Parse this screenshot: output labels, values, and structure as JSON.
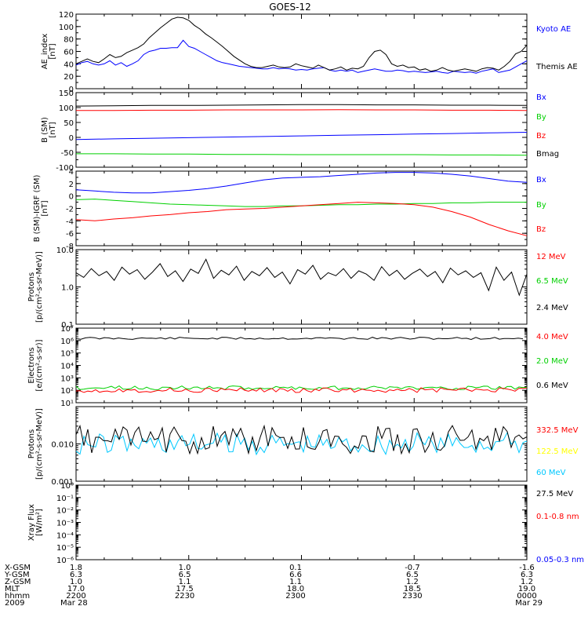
{
  "title": "GOES-12",
  "colors": {
    "black": "#000000",
    "blue": "#0000ff",
    "green": "#00d000",
    "red": "#ff0000",
    "yellow": "#ffff00",
    "cyan": "#00c8ff",
    "grey": "#888888"
  },
  "chart_data": [
    {
      "type": "line",
      "ylabel": [
        "AE_index",
        "[nT]"
      ],
      "ylim": [
        0,
        120
      ],
      "ticks": [
        "0",
        "20",
        "40",
        "60",
        "80",
        "100",
        "120"
      ],
      "tick_values": [
        0,
        20,
        40,
        60,
        80,
        100,
        120
      ],
      "series": [
        {
          "name": "Kyoto AE",
          "color": "blue",
          "values": [
            38,
            42,
            44,
            40,
            38,
            40,
            45,
            38,
            42,
            36,
            40,
            45,
            55,
            60,
            62,
            65,
            65,
            66,
            66,
            78,
            68,
            65,
            60,
            55,
            50,
            45,
            42,
            40,
            38,
            36,
            35,
            34,
            33,
            32,
            32,
            34,
            32,
            33,
            32,
            30,
            31,
            30,
            32,
            33,
            34,
            30,
            28,
            30,
            28,
            30,
            26,
            28,
            30,
            32,
            30,
            28,
            28,
            30,
            29,
            27,
            28,
            27,
            26,
            27,
            28,
            26,
            25,
            28,
            27,
            26,
            27,
            25,
            28,
            30,
            32,
            26,
            28,
            30,
            35,
            40,
            45
          ]
        },
        {
          "name": "Themis AE",
          "color": "black",
          "values": [
            40,
            44,
            48,
            44,
            42,
            48,
            55,
            50,
            52,
            58,
            62,
            66,
            72,
            82,
            90,
            98,
            105,
            112,
            115,
            114,
            110,
            102,
            96,
            88,
            82,
            75,
            68,
            60,
            52,
            46,
            40,
            36,
            34,
            34,
            36,
            38,
            35,
            34,
            35,
            40,
            37,
            35,
            33,
            38,
            34,
            30,
            32,
            35,
            30,
            33,
            32,
            36,
            50,
            60,
            62,
            55,
            40,
            36,
            38,
            34,
            35,
            30,
            32,
            28,
            30,
            34,
            30,
            28,
            30,
            32,
            30,
            28,
            32,
            34,
            33,
            30,
            36,
            44,
            56,
            60,
            70
          ]
        }
      ],
      "legend": [
        "Kyoto AE",
        "Themis AE"
      ]
    },
    {
      "type": "line",
      "ylabel": [
        "B (SM)",
        "[nT]"
      ],
      "ylim": [
        -100,
        150
      ],
      "ticks": [
        "-100",
        "-50",
        "0",
        "50",
        "100",
        "150"
      ],
      "tick_values": [
        -100,
        -50,
        0,
        50,
        100,
        150
      ],
      "series": [
        {
          "name": "Bx",
          "color": "blue",
          "values": [
            -7,
            -5,
            -3,
            -1,
            1,
            3,
            5,
            7,
            9,
            11,
            13,
            15,
            17
          ]
        },
        {
          "name": "By",
          "color": "green",
          "values": [
            -55,
            -55,
            -56,
            -56,
            -57,
            -57,
            -58,
            -58,
            -58,
            -58,
            -59,
            -59,
            -60
          ]
        },
        {
          "name": "Bz",
          "color": "red",
          "values": [
            90,
            90,
            91,
            91,
            92,
            92,
            92,
            93,
            92,
            92,
            91,
            91,
            90
          ]
        },
        {
          "name": "Bmag",
          "color": "black",
          "values": [
            105,
            106,
            107,
            107,
            108,
            109,
            110,
            110,
            109,
            109,
            108,
            108,
            107
          ]
        }
      ],
      "legend": [
        "Bx",
        "By",
        "Bz",
        "Bmag"
      ]
    },
    {
      "type": "line",
      "ylabel": [
        "B (SM)-IGRF (SM)",
        "[nT]"
      ],
      "ylim": [
        -8,
        4
      ],
      "ticks": [
        "-8",
        "-6",
        "-4",
        "-2",
        "0",
        "2",
        "4"
      ],
      "tick_values": [
        -8,
        -6,
        -4,
        -2,
        0,
        2,
        4
      ],
      "series": [
        {
          "name": "Bx",
          "color": "blue",
          "values": [
            1.0,
            0.8,
            0.6,
            0.5,
            0.5,
            0.7,
            0.9,
            1.2,
            1.6,
            2.1,
            2.6,
            2.9,
            3.0,
            3.1,
            3.3,
            3.5,
            3.7,
            3.8,
            3.8,
            3.7,
            3.5,
            3.2,
            2.8,
            2.4,
            2.2
          ]
        },
        {
          "name": "By",
          "color": "green",
          "values": [
            -0.6,
            -0.5,
            -0.7,
            -0.9,
            -1.1,
            -1.3,
            -1.4,
            -1.5,
            -1.6,
            -1.7,
            -1.7,
            -1.6,
            -1.6,
            -1.5,
            -1.4,
            -1.4,
            -1.3,
            -1.3,
            -1.2,
            -1.2,
            -1.1,
            -1.1,
            -1.0,
            -1.0,
            -1.0
          ]
        },
        {
          "name": "Bz",
          "color": "red",
          "values": [
            -3.8,
            -4.0,
            -3.7,
            -3.5,
            -3.2,
            -3.0,
            -2.7,
            -2.5,
            -2.2,
            -2.1,
            -2.0,
            -1.8,
            -1.6,
            -1.4,
            -1.2,
            -1.0,
            -1.1,
            -1.2,
            -1.4,
            -1.8,
            -2.5,
            -3.4,
            -4.6,
            -5.6,
            -6.4
          ]
        }
      ],
      "legend": [
        "Bx",
        "By",
        "Bz"
      ]
    },
    {
      "type": "line",
      "ylabel": [
        "Protons",
        "[p/(cm²-s-sr-MeV)]"
      ],
      "log": true,
      "ylim": [
        0.1,
        10
      ],
      "ticks": [
        "0.1",
        "1.0",
        "10.0"
      ],
      "tick_values": [
        0.1,
        1,
        10
      ],
      "series": [
        {
          "name": "12 MeV",
          "color": "red",
          "values": []
        },
        {
          "name": "6.5 MeV",
          "color": "green",
          "values": []
        },
        {
          "name": "2.4 MeV",
          "color": "black",
          "values": [
            2.4,
            1.8,
            3.1,
            2.0,
            2.6,
            1.5,
            3.4,
            2.2,
            2.9,
            1.6,
            2.5,
            4.2,
            1.9,
            2.7,
            1.4,
            3.0,
            2.3,
            5.5,
            1.7,
            2.8,
            2.1,
            3.6,
            1.5,
            2.6,
            2.0,
            3.3,
            1.8,
            2.5,
            1.2,
            2.9,
            2.2,
            3.8,
            1.6,
            2.4,
            2.0,
            3.1,
            1.7,
            2.7,
            2.2,
            1.5,
            3.5,
            2.0,
            2.8,
            1.6,
            2.3,
            3.0,
            1.9,
            2.6,
            1.3,
            3.2,
            2.1,
            2.7,
            1.8,
            2.4,
            0.8,
            3.4,
            1.5,
            2.5,
            0.6,
            2.2
          ]
        }
      ],
      "legend": [
        "12 MeV",
        "6.5 MeV",
        "2.4 MeV"
      ]
    },
    {
      "type": "line",
      "ylabel": [
        "Electrons",
        "[e/(cm²-s-sr)]"
      ],
      "log": true,
      "ylim": [
        10,
        10000000
      ],
      "ticks": [
        "10¹",
        "10²",
        "10³",
        "10⁴",
        "10⁵",
        "10⁶",
        "10⁷"
      ],
      "tick_values": [
        10,
        100,
        1000,
        10000,
        100000,
        1000000,
        10000000
      ],
      "series": [
        {
          "name": "4.0 MeV",
          "color": "red",
          "values": []
        },
        {
          "name": "2.0 MeV",
          "color": "green",
          "values": []
        },
        {
          "name": "0.6 MeV",
          "color": "black",
          "values": []
        }
      ],
      "legend": [
        "4.0 MeV",
        "2.0 MeV",
        "0.6 MeV"
      ]
    },
    {
      "type": "line",
      "ylabel": [
        "Protons",
        "[p/(cm²-s-sr-MeV)]"
      ],
      "log": true,
      "ylim": [
        0.001,
        0.1
      ],
      "ticks": [
        "0.001",
        "0.010"
      ],
      "tick_values": [
        0.001,
        0.01
      ],
      "series": [
        {
          "name": "332.5 MeV",
          "color": "red",
          "values": []
        },
        {
          "name": "122.5 MeV",
          "color": "yellow",
          "values": []
        },
        {
          "name": "60 MeV",
          "color": "cyan",
          "values": []
        },
        {
          "name": "27.5 MeV",
          "color": "black",
          "values": []
        }
      ],
      "legend": [
        "332.5 MeV",
        "122.5 MeV",
        "60 MeV",
        "27.5 MeV"
      ]
    },
    {
      "type": "line",
      "ylabel": [
        "Xray Flux",
        "[W/m²]"
      ],
      "log": true,
      "ylim": [
        1e-06,
        1
      ],
      "ticks": [
        "10⁻⁶",
        "10⁻⁵",
        "10⁻⁴",
        "10⁻³",
        "10⁻²",
        "10⁻¹",
        "10⁰"
      ],
      "tick_values": [
        1e-06,
        1e-05,
        0.0001,
        0.001,
        0.01,
        0.1,
        1
      ],
      "series": [
        {
          "name": "0.1-0.8 nm",
          "color": "red",
          "values": []
        },
        {
          "name": "0.05-0.3 nm",
          "color": "blue",
          "values": []
        }
      ],
      "legend": [
        "0.1-0.8 nm",
        "0.05-0.3 nm"
      ]
    }
  ],
  "x_axis": {
    "row_labels": [
      "X-GSM",
      "Y-GSM",
      "Z-GSM",
      "MLT",
      "hhmm",
      "2009"
    ],
    "columns": [
      [
        "1.8",
        "6.3",
        "1.0",
        "17.0",
        "2200",
        "Mar 28"
      ],
      [
        "1.0",
        "6.5",
        "1.1",
        "17.5",
        "2230",
        ""
      ],
      [
        "0.1",
        "6.6",
        "1.1",
        "18.0",
        "2300",
        ""
      ],
      [
        "-0.7",
        "6.5",
        "1.2",
        "18.5",
        "2330",
        ""
      ],
      [
        "-1.6",
        "6.3",
        "1.2",
        "19.0",
        "0000",
        "Mar 29"
      ]
    ]
  }
}
